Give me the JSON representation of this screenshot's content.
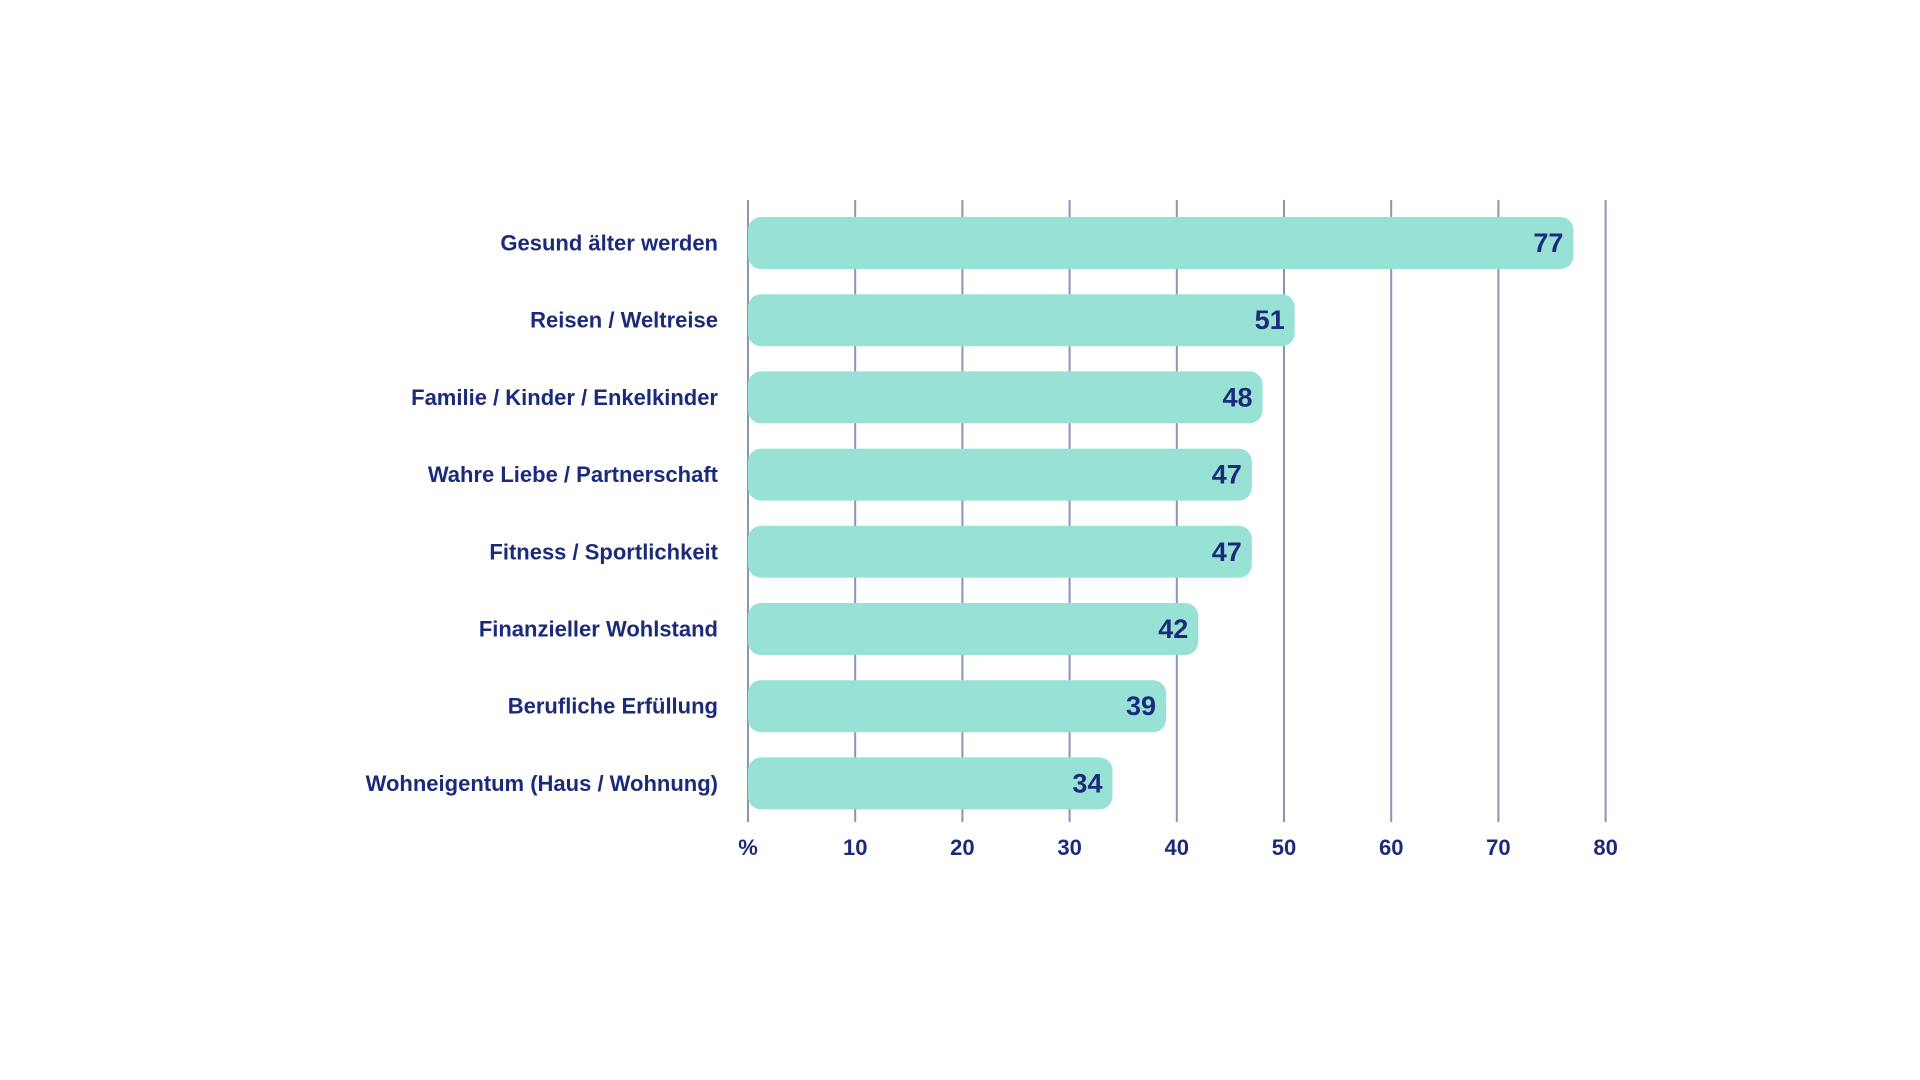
{
  "chart_data": {
    "type": "bar",
    "orientation": "horizontal",
    "categories": [
      "Gesund älter werden",
      "Reisen / Weltreise",
      "Familie / Kinder / Enkelkinder",
      "Wahre Liebe / Partnerschaft",
      "Fitness / Sportlichkeit",
      "Finanzieller Wohlstand",
      "Berufliche Erfüllung",
      "Wohneigentum (Haus / Wohnung)"
    ],
    "values": [
      77,
      51,
      48,
      47,
      47,
      42,
      39,
      34
    ],
    "value_labels": [
      "77",
      "51",
      "48",
      "47",
      "47",
      "42",
      "39",
      "34"
    ],
    "x_ticks": [
      0,
      10,
      20,
      30,
      40,
      50,
      60,
      70,
      80
    ],
    "x_tick_labels": [
      "%",
      "10",
      "20",
      "30",
      "40",
      "50",
      "60",
      "70",
      "80"
    ],
    "xlim": [
      0,
      80
    ],
    "grid": "vertical",
    "legend": "none",
    "title": "",
    "xlabel": "",
    "ylabel": "",
    "colors": {
      "bar": "#98e2d5",
      "text": "#1b2a7a",
      "grid": "#8a93b8"
    }
  }
}
